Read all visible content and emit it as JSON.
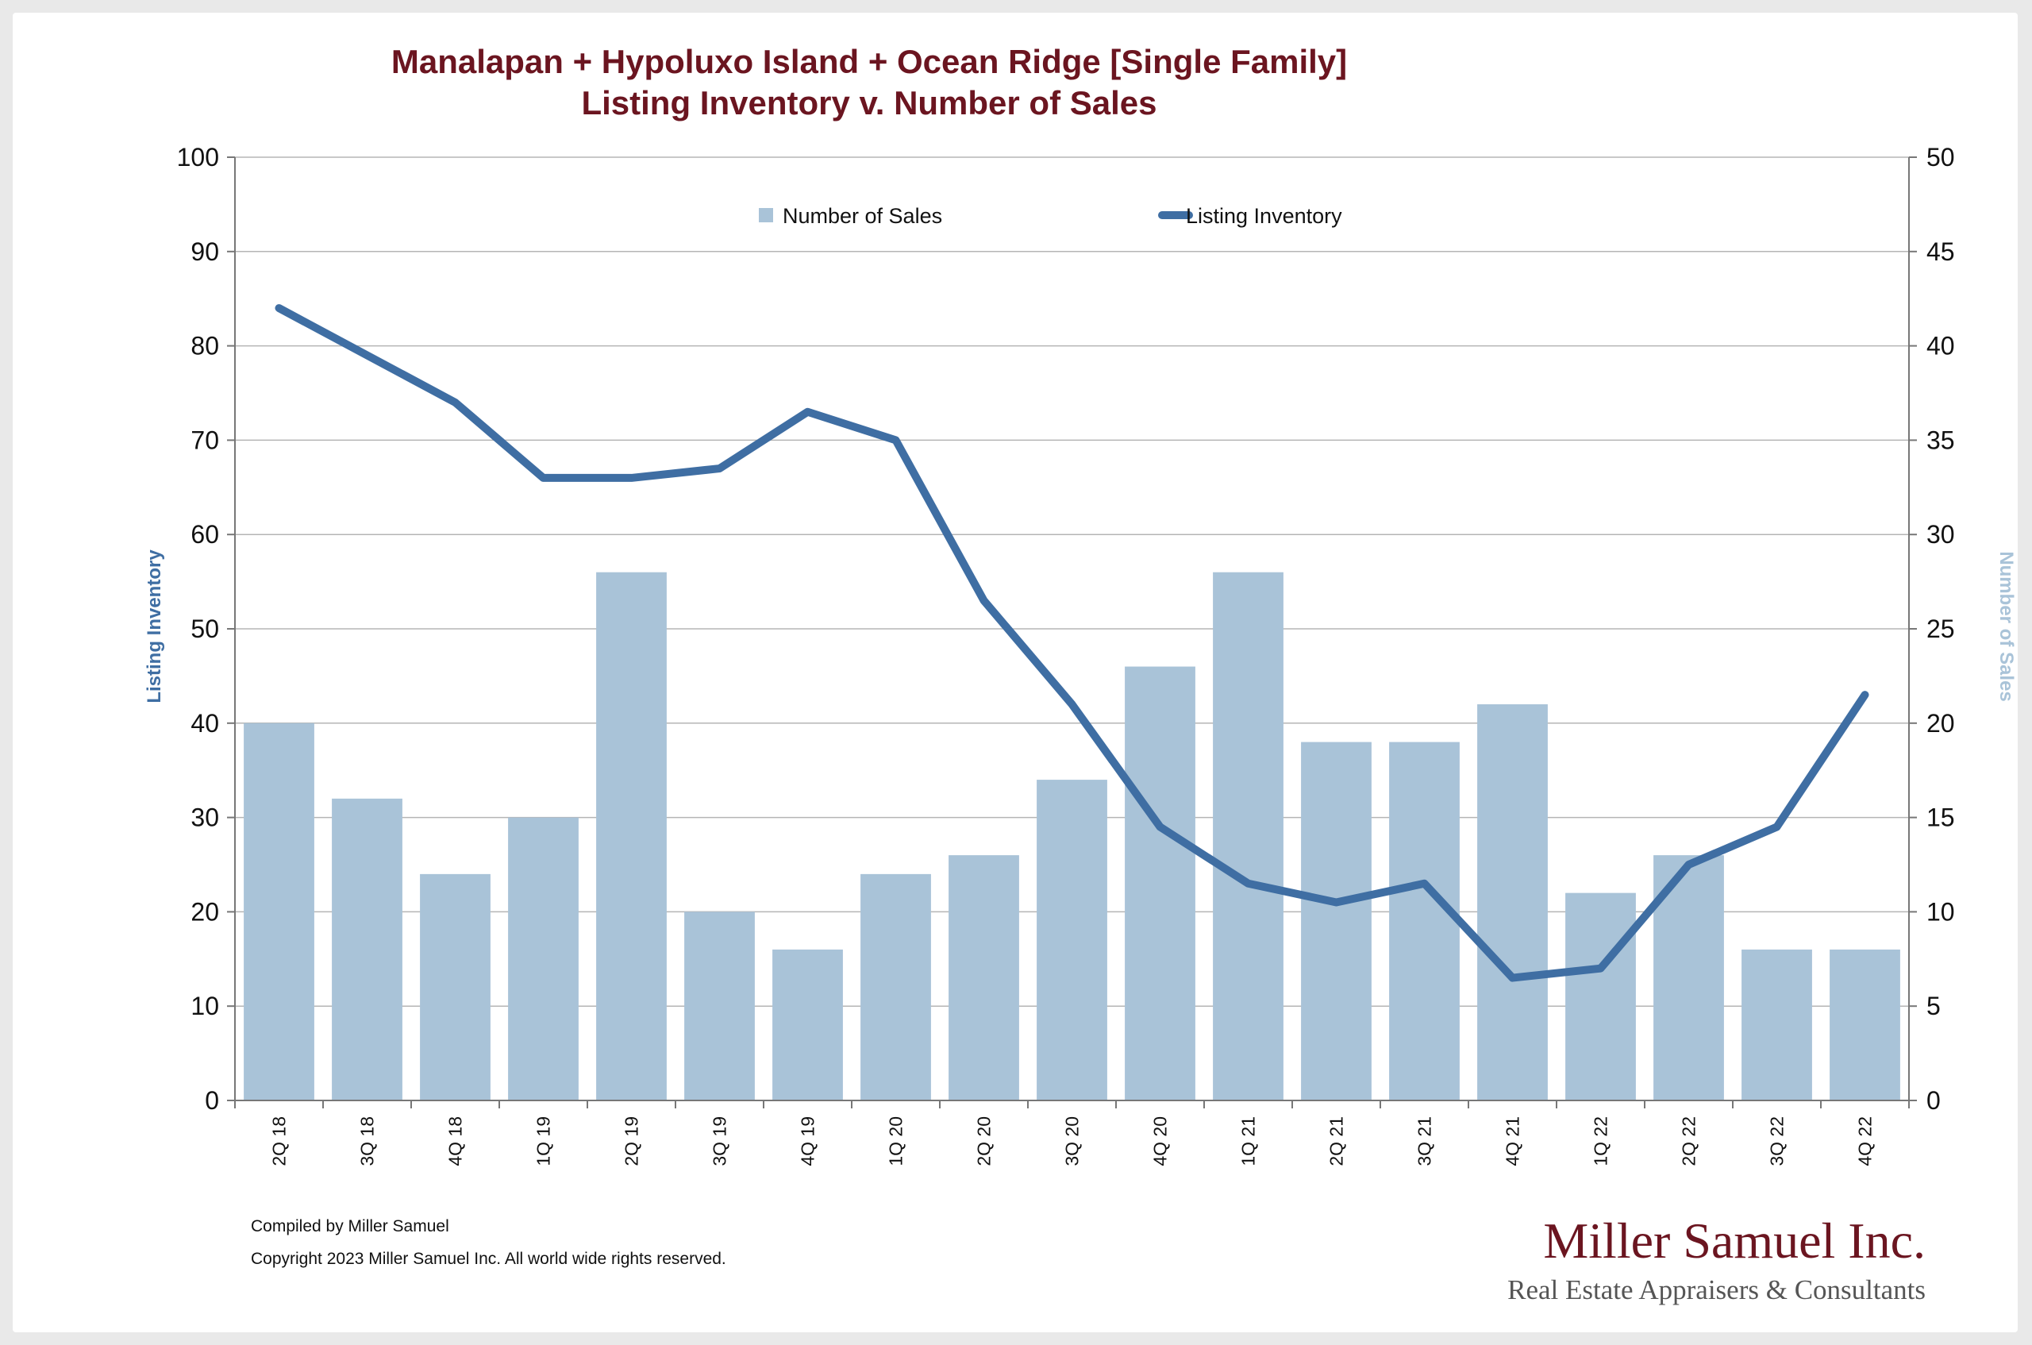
{
  "chart_data": {
    "type": "bar+line",
    "title_lines": [
      "Manalapan + Hypoluxo Island + Ocean Ridge [Single Family]",
      "Listing Inventory v. Number of Sales"
    ],
    "categories": [
      "2Q 18",
      "3Q 18",
      "4Q 18",
      "1Q 19",
      "2Q 19",
      "3Q 19",
      "4Q 19",
      "1Q 20",
      "2Q 20",
      "3Q 20",
      "4Q 20",
      "1Q 21",
      "2Q 21",
      "3Q 21",
      "4Q 21",
      "1Q 22",
      "2Q 22",
      "3Q 22",
      "4Q 22"
    ],
    "series": [
      {
        "name": "Number of Sales",
        "type": "bar",
        "axis": "right",
        "color": "#a9c3d8",
        "values": [
          20,
          16,
          12,
          15,
          28,
          10,
          8,
          12,
          13,
          17,
          23,
          28,
          19,
          19,
          21,
          11,
          13,
          8,
          8
        ]
      },
      {
        "name": "Listing Inventory",
        "type": "line",
        "axis": "left",
        "color": "#3f6ea3",
        "values": [
          84,
          79,
          74,
          66,
          66,
          67,
          73,
          70,
          53,
          42,
          29,
          23,
          21,
          23,
          13,
          14,
          25,
          29,
          43
        ]
      }
    ],
    "ylabel_left": "Listing Inventory",
    "ylabel_right": "Number of Sales",
    "ylim_left": [
      0,
      100
    ],
    "ylim_right": [
      0,
      50
    ],
    "yticks_left": [
      0,
      10,
      20,
      30,
      40,
      50,
      60,
      70,
      80,
      90,
      100
    ],
    "yticks_right": [
      0,
      5,
      10,
      15,
      20,
      25,
      30,
      35,
      40,
      45,
      50
    ],
    "grid": true,
    "legend_position": "top-center"
  },
  "footer": {
    "compiled": "Compiled by Miller Samuel",
    "copyright": "Copyright 2023 Miller Samuel Inc.  All world wide rights reserved."
  },
  "brand": {
    "name": "Miller Samuel Inc.",
    "tagline": "Real Estate Appraisers & Consultants"
  },
  "colors": {
    "title": "#6b1520",
    "gridline": "#b5b5b5",
    "left_axis_title": "#3f6ea3",
    "right_axis_title": "#a9c3d8"
  }
}
